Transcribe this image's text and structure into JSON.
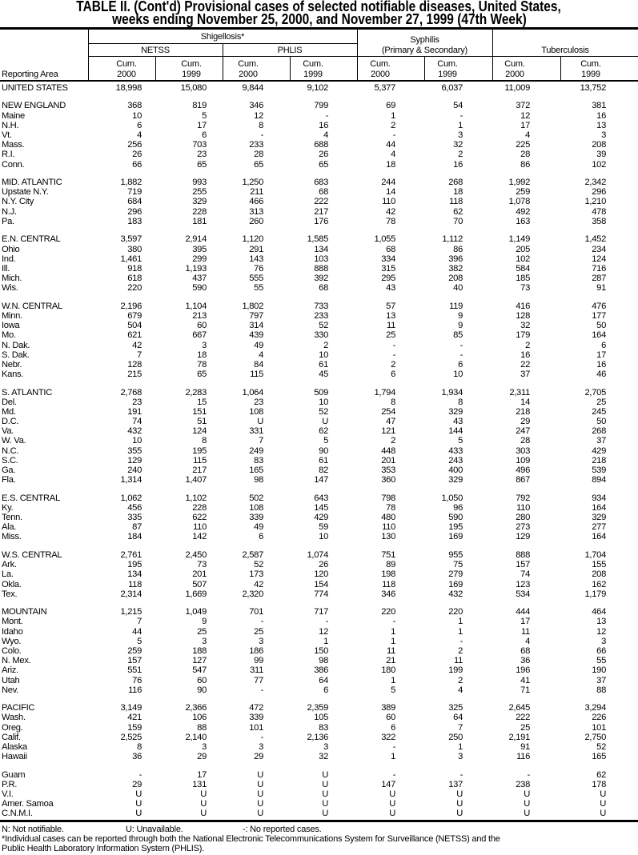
{
  "title": {
    "line1": "TABLE II. (Cont'd) Provisional cases of selected notifiable diseases, United States,",
    "line2": "weeks ending November 25, 2000, and November 27, 1999 (47th Week)"
  },
  "header": {
    "reporting_area": "Reporting Area",
    "shigellosis": "Shigellosis*",
    "netss": "NETSS",
    "phlis": "PHLIS",
    "syphilis_line1": "Syphilis",
    "syphilis_line2": "(Primary & Secondary)",
    "tuberculosis": "Tuberculosis",
    "columns": [
      {
        "l1": "Cum.",
        "l2": "2000"
      },
      {
        "l1": "Cum.",
        "l2": "1999"
      },
      {
        "l1": "Cum.",
        "l2": "2000"
      },
      {
        "l1": "Cum.",
        "l2": "1999"
      },
      {
        "l1": "Cum.",
        "l2": "2000"
      },
      {
        "l1": "Cum.",
        "l2": "1999"
      },
      {
        "l1": "Cum.",
        "l2": "2000"
      },
      {
        "l1": "Cum.",
        "l2": "1999"
      }
    ]
  },
  "groups": [
    {
      "rows": [
        {
          "area": "UNITED STATES",
          "values": [
            "18,998",
            "15,080",
            "9,844",
            "9,102",
            "5,377",
            "6,037",
            "11,009",
            "13,752"
          ]
        }
      ]
    },
    {
      "rows": [
        {
          "area": "NEW ENGLAND",
          "values": [
            "368",
            "819",
            "346",
            "799",
            "69",
            "54",
            "372",
            "381"
          ]
        },
        {
          "area": "Maine",
          "values": [
            "10",
            "5",
            "12",
            "-",
            "1",
            "-",
            "12",
            "16"
          ]
        },
        {
          "area": "N.H.",
          "values": [
            "6",
            "17",
            "8",
            "16",
            "2",
            "1",
            "17",
            "13"
          ]
        },
        {
          "area": "Vt.",
          "values": [
            "4",
            "6",
            "-",
            "4",
            "-",
            "3",
            "4",
            "3"
          ]
        },
        {
          "area": "Mass.",
          "values": [
            "256",
            "703",
            "233",
            "688",
            "44",
            "32",
            "225",
            "208"
          ]
        },
        {
          "area": "R.I.",
          "values": [
            "26",
            "23",
            "28",
            "26",
            "4",
            "2",
            "28",
            "39"
          ]
        },
        {
          "area": "Conn.",
          "values": [
            "66",
            "65",
            "65",
            "65",
            "18",
            "16",
            "86",
            "102"
          ]
        }
      ]
    },
    {
      "rows": [
        {
          "area": "MID. ATLANTIC",
          "values": [
            "1,882",
            "993",
            "1,250",
            "683",
            "244",
            "268",
            "1,992",
            "2,342"
          ]
        },
        {
          "area": "Upstate N.Y.",
          "values": [
            "719",
            "255",
            "211",
            "68",
            "14",
            "18",
            "259",
            "296"
          ]
        },
        {
          "area": "N.Y. City",
          "values": [
            "684",
            "329",
            "466",
            "222",
            "110",
            "118",
            "1,078",
            "1,210"
          ]
        },
        {
          "area": "N.J.",
          "values": [
            "296",
            "228",
            "313",
            "217",
            "42",
            "62",
            "492",
            "478"
          ]
        },
        {
          "area": "Pa.",
          "values": [
            "183",
            "181",
            "260",
            "176",
            "78",
            "70",
            "163",
            "358"
          ]
        }
      ]
    },
    {
      "rows": [
        {
          "area": "E.N. CENTRAL",
          "values": [
            "3,597",
            "2,914",
            "1,120",
            "1,585",
            "1,055",
            "1,112",
            "1,149",
            "1,452"
          ]
        },
        {
          "area": "Ohio",
          "values": [
            "380",
            "395",
            "291",
            "134",
            "68",
            "86",
            "205",
            "234"
          ]
        },
        {
          "area": "Ind.",
          "values": [
            "1,461",
            "299",
            "143",
            "103",
            "334",
            "396",
            "102",
            "124"
          ]
        },
        {
          "area": "Ill.",
          "values": [
            "918",
            "1,193",
            "76",
            "888",
            "315",
            "382",
            "584",
            "716"
          ]
        },
        {
          "area": "Mich.",
          "values": [
            "618",
            "437",
            "555",
            "392",
            "295",
            "208",
            "185",
            "287"
          ]
        },
        {
          "area": "Wis.",
          "values": [
            "220",
            "590",
            "55",
            "68",
            "43",
            "40",
            "73",
            "91"
          ]
        }
      ]
    },
    {
      "rows": [
        {
          "area": "W.N. CENTRAL",
          "values": [
            "2,196",
            "1,104",
            "1,802",
            "733",
            "57",
            "119",
            "416",
            "476"
          ]
        },
        {
          "area": "Minn.",
          "values": [
            "679",
            "213",
            "797",
            "233",
            "13",
            "9",
            "128",
            "177"
          ]
        },
        {
          "area": "Iowa",
          "values": [
            "504",
            "60",
            "314",
            "52",
            "11",
            "9",
            "32",
            "50"
          ]
        },
        {
          "area": "Mo.",
          "values": [
            "621",
            "667",
            "439",
            "330",
            "25",
            "85",
            "179",
            "164"
          ]
        },
        {
          "area": "N. Dak.",
          "values": [
            "42",
            "3",
            "49",
            "2",
            "-",
            "-",
            "2",
            "6"
          ]
        },
        {
          "area": "S. Dak.",
          "values": [
            "7",
            "18",
            "4",
            "10",
            "-",
            "-",
            "16",
            "17"
          ]
        },
        {
          "area": "Nebr.",
          "values": [
            "128",
            "78",
            "84",
            "61",
            "2",
            "6",
            "22",
            "16"
          ]
        },
        {
          "area": "Kans.",
          "values": [
            "215",
            "65",
            "115",
            "45",
            "6",
            "10",
            "37",
            "46"
          ]
        }
      ]
    },
    {
      "rows": [
        {
          "area": "S. ATLANTIC",
          "values": [
            "2,768",
            "2,283",
            "1,064",
            "509",
            "1,794",
            "1,934",
            "2,311",
            "2,705"
          ]
        },
        {
          "area": "Del.",
          "values": [
            "23",
            "15",
            "23",
            "10",
            "8",
            "8",
            "14",
            "25"
          ]
        },
        {
          "area": "Md.",
          "values": [
            "191",
            "151",
            "108",
            "52",
            "254",
            "329",
            "218",
            "245"
          ]
        },
        {
          "area": "D.C.",
          "values": [
            "74",
            "51",
            "U",
            "U",
            "47",
            "43",
            "29",
            "50"
          ]
        },
        {
          "area": "Va.",
          "values": [
            "432",
            "124",
            "331",
            "62",
            "121",
            "144",
            "247",
            "268"
          ]
        },
        {
          "area": "W. Va.",
          "values": [
            "10",
            "8",
            "7",
            "5",
            "2",
            "5",
            "28",
            "37"
          ]
        },
        {
          "area": "N.C.",
          "values": [
            "355",
            "195",
            "249",
            "90",
            "448",
            "433",
            "303",
            "429"
          ]
        },
        {
          "area": "S.C.",
          "values": [
            "129",
            "115",
            "83",
            "61",
            "201",
            "243",
            "109",
            "218"
          ]
        },
        {
          "area": "Ga.",
          "values": [
            "240",
            "217",
            "165",
            "82",
            "353",
            "400",
            "496",
            "539"
          ]
        },
        {
          "area": "Fla.",
          "values": [
            "1,314",
            "1,407",
            "98",
            "147",
            "360",
            "329",
            "867",
            "894"
          ]
        }
      ]
    },
    {
      "rows": [
        {
          "area": "E.S. CENTRAL",
          "values": [
            "1,062",
            "1,102",
            "502",
            "643",
            "798",
            "1,050",
            "792",
            "934"
          ]
        },
        {
          "area": "Ky.",
          "values": [
            "456",
            "228",
            "108",
            "145",
            "78",
            "96",
            "110",
            "164"
          ]
        },
        {
          "area": "Tenn.",
          "values": [
            "335",
            "622",
            "339",
            "429",
            "480",
            "590",
            "280",
            "329"
          ]
        },
        {
          "area": "Ala.",
          "values": [
            "87",
            "110",
            "49",
            "59",
            "110",
            "195",
            "273",
            "277"
          ]
        },
        {
          "area": "Miss.",
          "values": [
            "184",
            "142",
            "6",
            "10",
            "130",
            "169",
            "129",
            "164"
          ]
        }
      ]
    },
    {
      "rows": [
        {
          "area": "W.S. CENTRAL",
          "values": [
            "2,761",
            "2,450",
            "2,587",
            "1,074",
            "751",
            "955",
            "888",
            "1,704"
          ]
        },
        {
          "area": "Ark.",
          "values": [
            "195",
            "73",
            "52",
            "26",
            "89",
            "75",
            "157",
            "155"
          ]
        },
        {
          "area": "La.",
          "values": [
            "134",
            "201",
            "173",
            "120",
            "198",
            "279",
            "74",
            "208"
          ]
        },
        {
          "area": "Okla.",
          "values": [
            "118",
            "507",
            "42",
            "154",
            "118",
            "169",
            "123",
            "162"
          ]
        },
        {
          "area": "Tex.",
          "values": [
            "2,314",
            "1,669",
            "2,320",
            "774",
            "346",
            "432",
            "534",
            "1,179"
          ]
        }
      ]
    },
    {
      "rows": [
        {
          "area": "MOUNTAIN",
          "values": [
            "1,215",
            "1,049",
            "701",
            "717",
            "220",
            "220",
            "444",
            "464"
          ]
        },
        {
          "area": "Mont.",
          "values": [
            "7",
            "9",
            "-",
            "-",
            "-",
            "1",
            "17",
            "13"
          ]
        },
        {
          "area": "Idaho",
          "values": [
            "44",
            "25",
            "25",
            "12",
            "1",
            "1",
            "11",
            "12"
          ]
        },
        {
          "area": "Wyo.",
          "values": [
            "5",
            "3",
            "3",
            "1",
            "1",
            "-",
            "4",
            "3"
          ]
        },
        {
          "area": "Colo.",
          "values": [
            "259",
            "188",
            "186",
            "150",
            "11",
            "2",
            "68",
            "66"
          ]
        },
        {
          "area": "N. Mex.",
          "values": [
            "157",
            "127",
            "99",
            "98",
            "21",
            "11",
            "36",
            "55"
          ]
        },
        {
          "area": "Ariz.",
          "values": [
            "551",
            "547",
            "311",
            "386",
            "180",
            "199",
            "196",
            "190"
          ]
        },
        {
          "area": "Utah",
          "values": [
            "76",
            "60",
            "77",
            "64",
            "1",
            "2",
            "41",
            "37"
          ]
        },
        {
          "area": "Nev.",
          "values": [
            "116",
            "90",
            "-",
            "6",
            "5",
            "4",
            "71",
            "88"
          ]
        }
      ]
    },
    {
      "rows": [
        {
          "area": "PACIFIC",
          "values": [
            "3,149",
            "2,366",
            "472",
            "2,359",
            "389",
            "325",
            "2,645",
            "3,294"
          ]
        },
        {
          "area": "Wash.",
          "values": [
            "421",
            "106",
            "339",
            "105",
            "60",
            "64",
            "222",
            "226"
          ]
        },
        {
          "area": "Oreg.",
          "values": [
            "159",
            "88",
            "101",
            "83",
            "6",
            "7",
            "25",
            "101"
          ]
        },
        {
          "area": "Calif.",
          "values": [
            "2,525",
            "2,140",
            "-",
            "2,136",
            "322",
            "250",
            "2,191",
            "2,750"
          ]
        },
        {
          "area": "Alaska",
          "values": [
            "8",
            "3",
            "3",
            "3",
            "-",
            "1",
            "91",
            "52"
          ]
        },
        {
          "area": "Hawaii",
          "values": [
            "36",
            "29",
            "29",
            "32",
            "1",
            "3",
            "116",
            "165"
          ]
        }
      ]
    },
    {
      "rows": [
        {
          "area": "Guam",
          "values": [
            "-",
            "17",
            "U",
            "U",
            "-",
            "-",
            "-",
            "62"
          ]
        },
        {
          "area": "P.R.",
          "values": [
            "29",
            "131",
            "U",
            "U",
            "147",
            "137",
            "238",
            "178"
          ]
        },
        {
          "area": "V.I.",
          "values": [
            "U",
            "U",
            "U",
            "U",
            "U",
            "U",
            "U",
            "U"
          ]
        },
        {
          "area": "Amer. Samoa",
          "values": [
            "U",
            "U",
            "U",
            "U",
            "U",
            "U",
            "U",
            "U"
          ]
        },
        {
          "area": "C.N.M.I.",
          "values": [
            "U",
            "U",
            "U",
            "U",
            "U",
            "U",
            "U",
            "U"
          ]
        }
      ]
    }
  ],
  "footnotes": {
    "legend_n": "N: Not notifiable.",
    "legend_u": "U: Unavailable.",
    "legend_dash": "-: No reported cases.",
    "note_line1": "*Individual cases can be reported through both the National Electronic Telecommunications System for Surveillance (NETSS) and the",
    "note_line2": "Public Health Laboratory Information System (PHLIS)."
  }
}
